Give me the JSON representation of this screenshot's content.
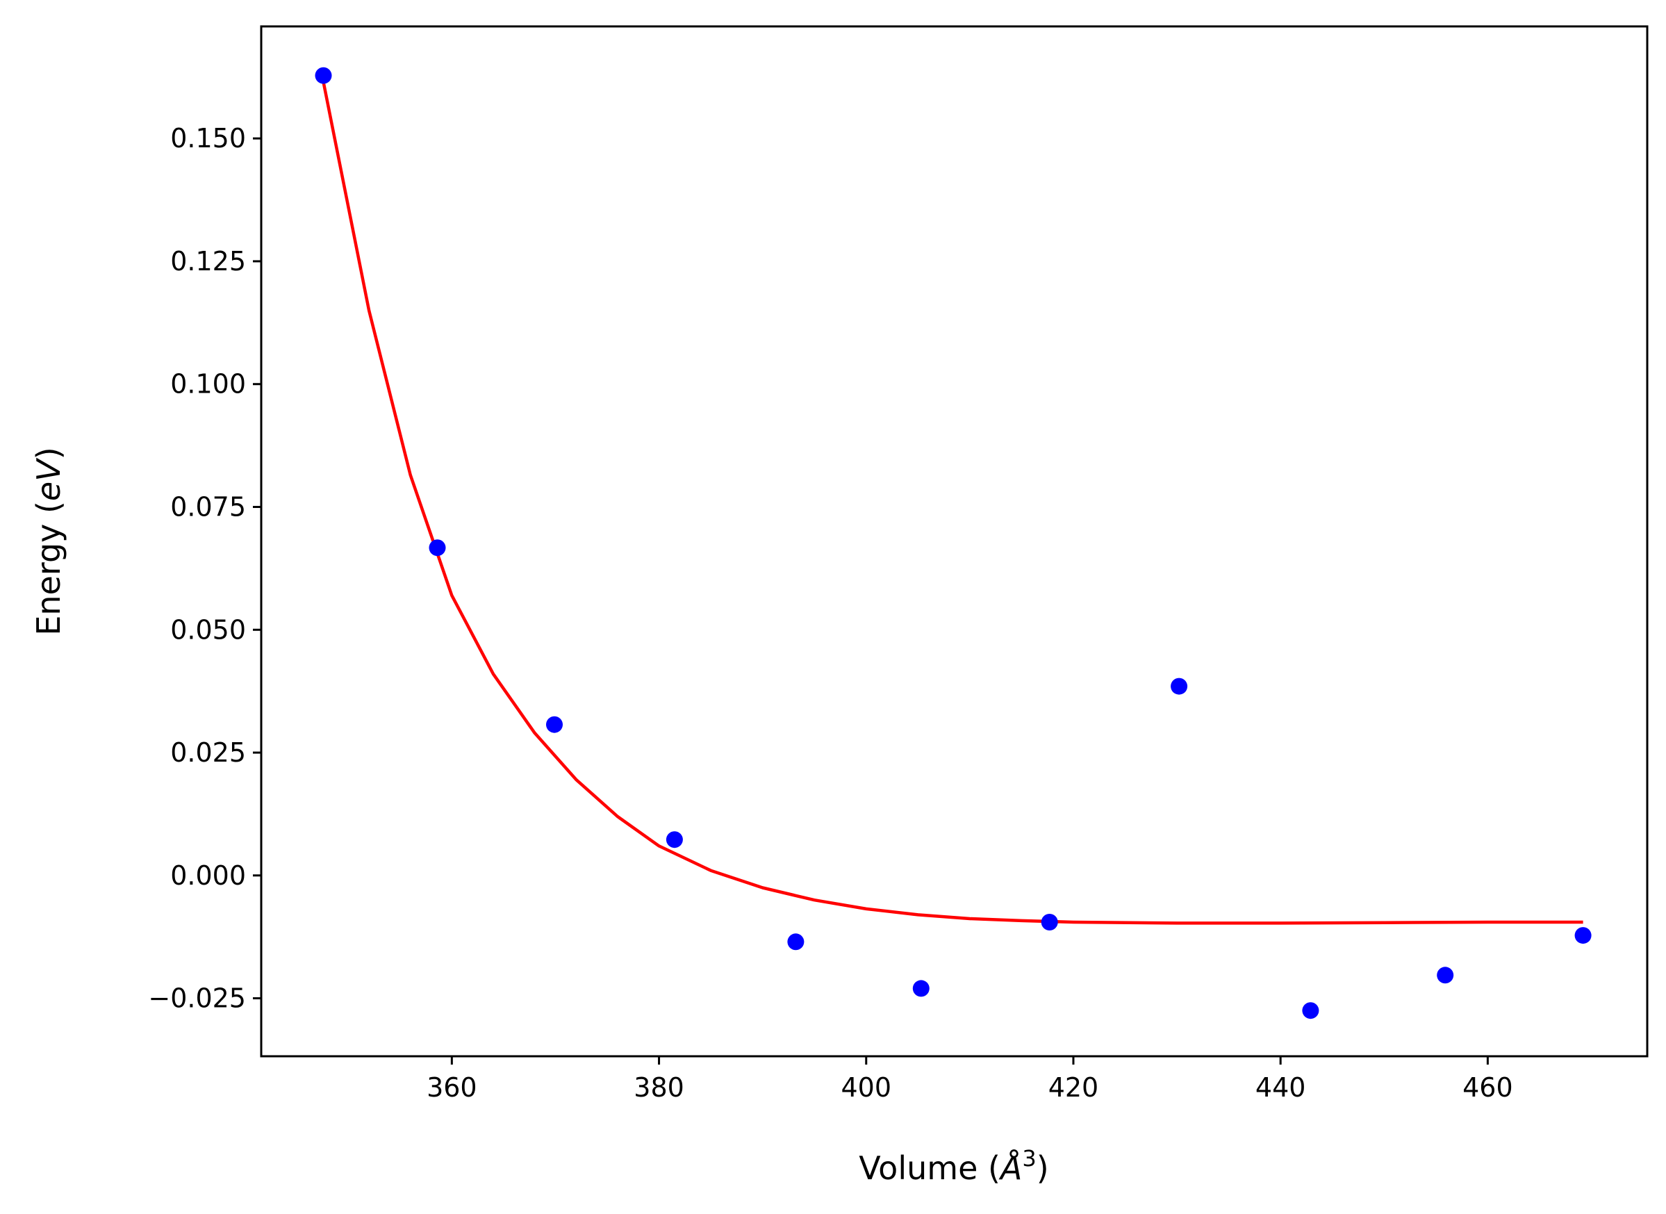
{
  "chart_data": {
    "type": "scatter",
    "xlabel": {
      "prefix": "Volume (",
      "symbol": "Å",
      "superscript": "3",
      "suffix": ")"
    },
    "ylabel": {
      "prefix": "Energy (",
      "italic": "eV",
      "suffix": ")"
    },
    "xlim": [
      341.6,
      475.4
    ],
    "ylim": [
      -0.0368,
      0.1728
    ],
    "x_ticks": [
      360,
      380,
      400,
      420,
      440,
      460
    ],
    "x_tick_labels": [
      "360",
      "380",
      "400",
      "420",
      "440",
      "460"
    ],
    "y_ticks": [
      -0.025,
      0.0,
      0.025,
      0.05,
      0.075,
      0.1,
      0.125,
      0.15
    ],
    "y_tick_labels": [
      "−0.025",
      "0.000",
      "0.025",
      "0.050",
      "0.075",
      "0.100",
      "0.125",
      "0.150"
    ],
    "grid": false,
    "series": [
      {
        "kind": "points",
        "color": "#0000ff",
        "x": [
          347.6,
          358.6,
          369.9,
          381.5,
          393.2,
          405.3,
          417.7,
          430.2,
          442.9,
          455.9,
          469.2
        ],
        "y": [
          0.1628,
          0.0667,
          0.0307,
          0.0073,
          -0.0135,
          -0.023,
          -0.0095,
          0.0385,
          -0.0275,
          -0.0203,
          -0.0122
        ]
      },
      {
        "kind": "line",
        "color": "#ff0000",
        "x": [
          347.6,
          352.0,
          356.0,
          360.0,
          364.0,
          368.0,
          372.0,
          376.0,
          380.0,
          385.0,
          390.0,
          395.0,
          400.0,
          405.0,
          410.0,
          415.0,
          420.0,
          430.0,
          440.0,
          450.0,
          460.0,
          469.2
        ],
        "y": [
          0.1615,
          0.115,
          0.0815,
          0.057,
          0.041,
          0.029,
          0.0195,
          0.012,
          0.006,
          0.001,
          -0.0025,
          -0.005,
          -0.0068,
          -0.008,
          -0.0088,
          -0.0092,
          -0.0095,
          -0.0097,
          -0.0097,
          -0.0096,
          -0.0095,
          -0.0095
        ]
      }
    ]
  }
}
